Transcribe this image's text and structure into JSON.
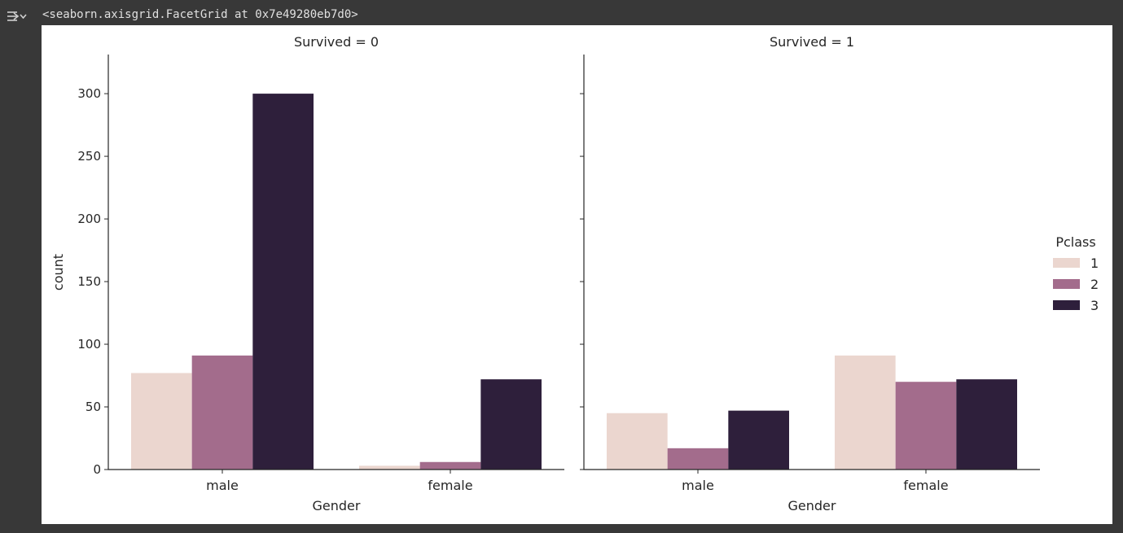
{
  "output": {
    "repr_text": "<seaborn.axisgrid.FacetGrid at 0x7e49280eb7d0>",
    "icon": "output-collapse-icon"
  },
  "chart_data": {
    "type": "bar",
    "kind": "countplot facet grid",
    "x_label": "Gender",
    "y_label": "count",
    "categories": [
      "male",
      "female"
    ],
    "hue_title": "Pclass",
    "hue_levels": [
      "1",
      "2",
      "3"
    ],
    "colors": [
      "#ebd6cf",
      "#a36c8c",
      "#2e1f3b"
    ],
    "ylim": [
      0,
      315
    ],
    "yticks": [
      0,
      50,
      100,
      150,
      200,
      250,
      300
    ],
    "legend_position": "right",
    "grid": false,
    "facets": [
      {
        "title": "Survived = 0",
        "series": [
          {
            "name": "1",
            "values": [
              77,
              3
            ]
          },
          {
            "name": "2",
            "values": [
              91,
              6
            ]
          },
          {
            "name": "3",
            "values": [
              300,
              72
            ]
          }
        ]
      },
      {
        "title": "Survived = 1",
        "series": [
          {
            "name": "1",
            "values": [
              45,
              91
            ]
          },
          {
            "name": "2",
            "values": [
              17,
              70
            ]
          },
          {
            "name": "3",
            "values": [
              47,
              72
            ]
          }
        ]
      }
    ]
  }
}
